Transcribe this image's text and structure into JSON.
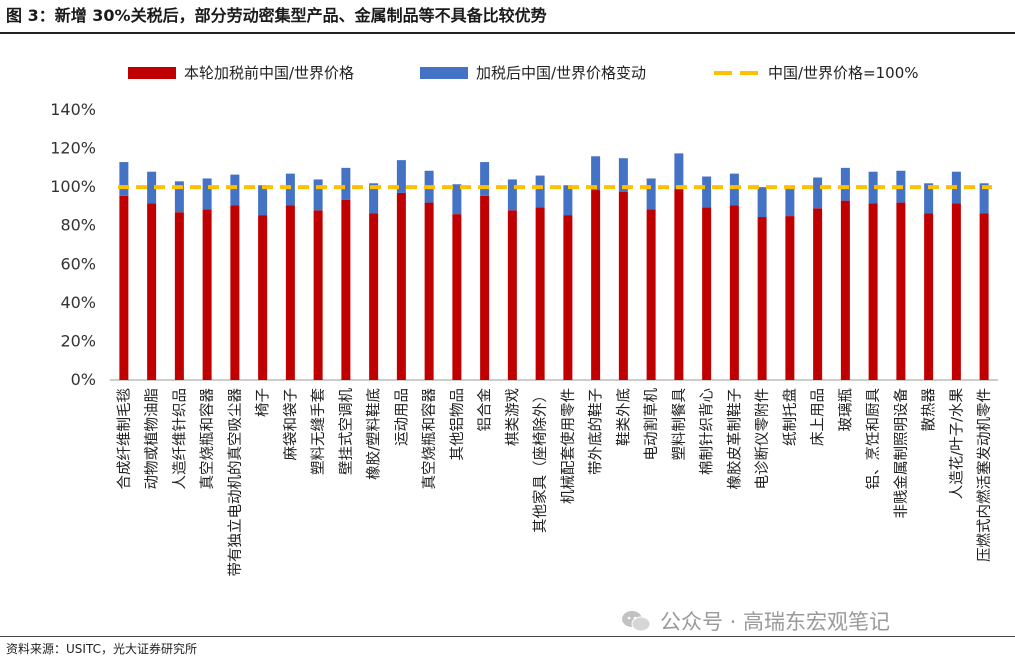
{
  "title": "图 3：新增 30%关税后，部分劳动密集型产品、金属制品等不具备比较优势",
  "source": "资料来源：USITC，光大证券研究所",
  "watermark": "公众号 · 高瑞东宏观笔记",
  "colors": {
    "base": "#c00000",
    "change": "#4472c4",
    "ref": "#ffc000"
  },
  "chart_data": {
    "type": "bar",
    "stacked": true,
    "ylim": [
      0,
      140
    ],
    "yticks": [
      "0%",
      "20%",
      "40%",
      "60%",
      "80%",
      "100%",
      "120%",
      "140%"
    ],
    "grid": false,
    "legend_position": "top",
    "categories": [
      "合成纤维制毛毯",
      "动物或植物油脂",
      "人造纤维针织品",
      "真空烧瓶和容器",
      "带有独立电动机的真空吸尘器",
      "椅子",
      "麻袋和袋子",
      "塑料无缝手套",
      "壁挂式空调机",
      "橡胶/塑料鞋底",
      "运动用品",
      "真空烧瓶和容器",
      "其他铝物品",
      "铝合金",
      "棋类游戏",
      "其他家具（座椅除外）",
      "机械配套使用零件",
      "带外底的鞋子",
      "鞋类外底",
      "电动割草机",
      "塑料制餐具",
      "棉制针织背心",
      "橡胶皮革制鞋子",
      "电诊断仪零附件",
      "纸制托盘",
      "床上用品",
      "玻璃瓶",
      "铝、烹饪和厨具",
      "非贱金属制照明设备",
      "散热器",
      "人造花/叶子/水果",
      "压燃式内燃活塞发动机零件"
    ],
    "series": [
      {
        "name": "本轮加税前中国/世界价格",
        "values": [
          95.5,
          91.5,
          87,
          88.5,
          90.5,
          85.5,
          90.5,
          88,
          93.5,
          86.5,
          97,
          92,
          86,
          95.5,
          88,
          89.5,
          85.5,
          98.5,
          97.5,
          88.5,
          99,
          89.5,
          90.5,
          84.5,
          85,
          89,
          93,
          91.5,
          92,
          86.5,
          91.5,
          86.5
        ]
      },
      {
        "name": "加税后中国/世界价格变动",
        "values": [
          17.5,
          16.5,
          16,
          16,
          16,
          15.5,
          16.5,
          16,
          16.5,
          15.5,
          17,
          16.5,
          15.5,
          17.5,
          16,
          16.5,
          15.5,
          17.5,
          17.5,
          16,
          18.5,
          16,
          16.5,
          15.5,
          15.5,
          16,
          17,
          16.5,
          16.5,
          15.5,
          16.5,
          15.5
        ]
      }
    ],
    "reference_line": {
      "name": "中国/世界价格=100%",
      "value": 100
    }
  }
}
